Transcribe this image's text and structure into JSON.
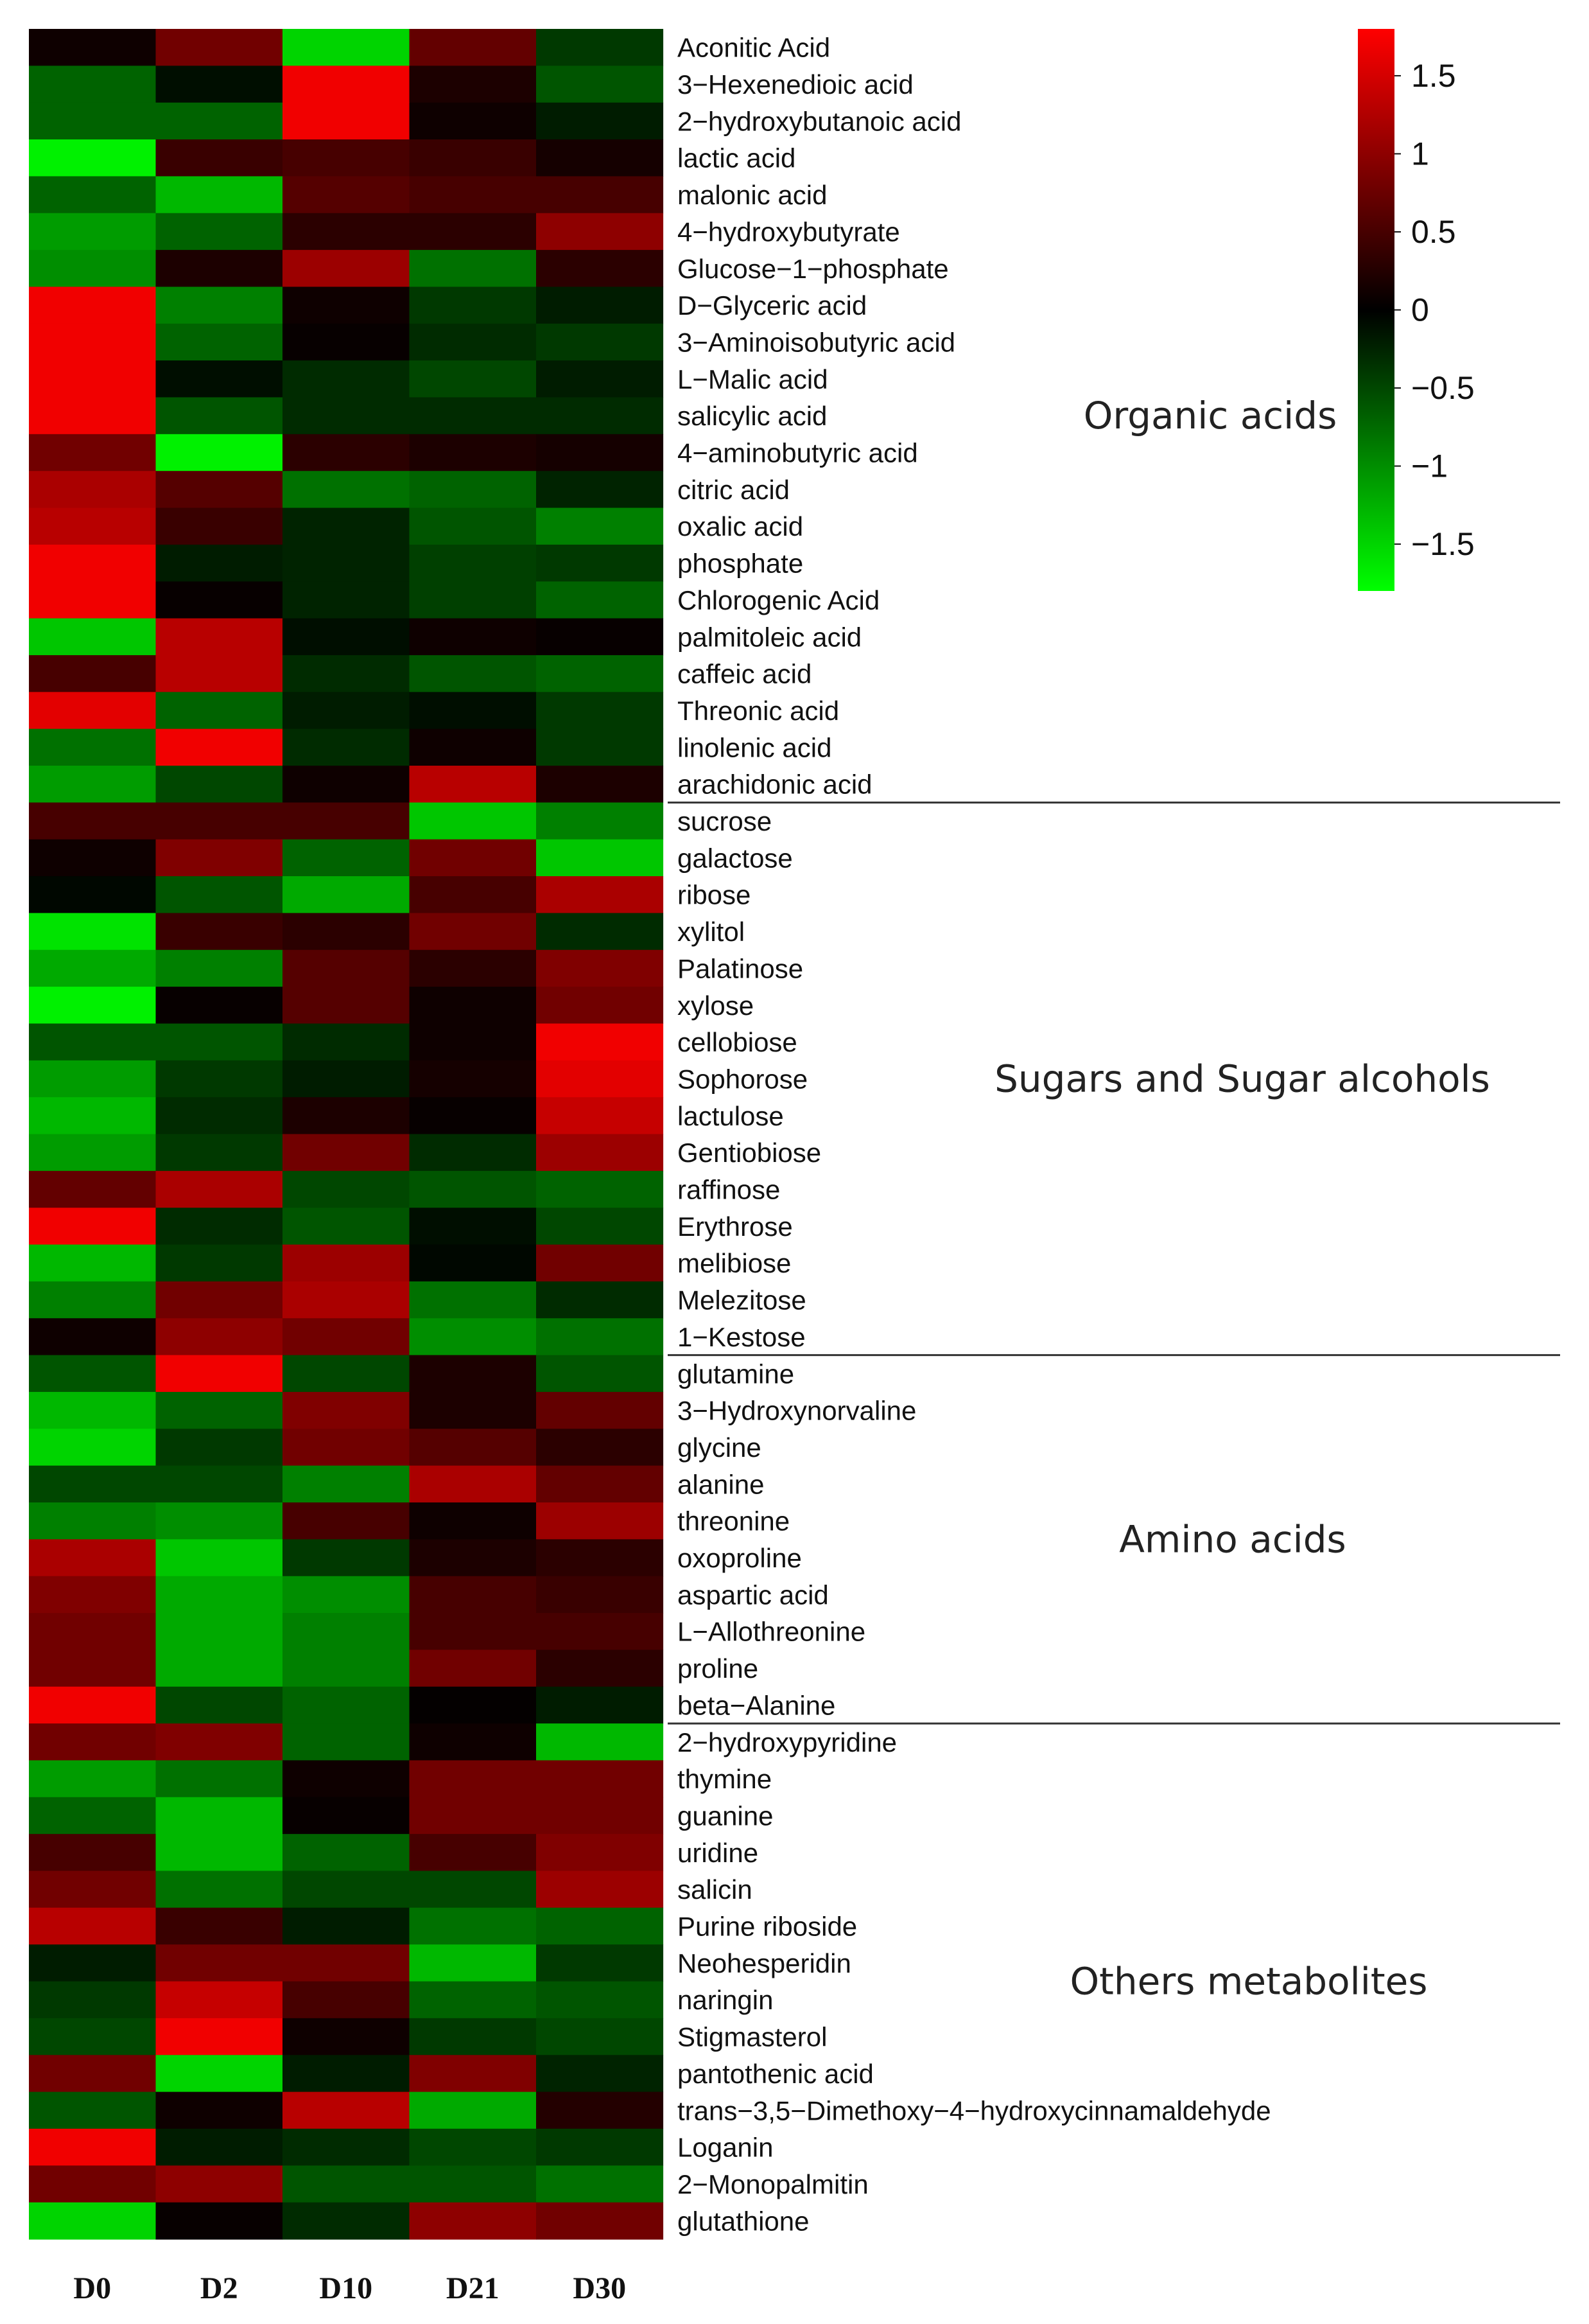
{
  "chart_data": {
    "type": "heatmap",
    "title": "",
    "columns": [
      "D0",
      "D2",
      "D10",
      "D21",
      "D30"
    ],
    "colorscale": {
      "low": "#00ff00",
      "mid": "#000000",
      "high": "#ff0000",
      "range": [
        -1.8,
        1.8
      ],
      "ticks": [
        1.5,
        1,
        0.5,
        0,
        -0.5,
        -1,
        -1.5
      ],
      "tick_labels": [
        "1.5",
        "1",
        "0.5",
        "0",
        "−0.5",
        "−1",
        "−1.5"
      ]
    },
    "groups": [
      {
        "label": "Organic acids",
        "start": 0,
        "end": 20
      },
      {
        "label": "Sugars and Sugar alcohols",
        "start": 21,
        "end": 35
      },
      {
        "label": "Amino acids",
        "start": 36,
        "end": 45
      },
      {
        "label": "Others metabolites",
        "start": 46,
        "end": 59
      }
    ],
    "rows": [
      {
        "label": "Aconitic Acid",
        "values": [
          0.1,
          0.8,
          -1.5,
          0.7,
          -0.4
        ]
      },
      {
        "label": "3−Hexenedioic acid",
        "values": [
          -0.7,
          -0.1,
          1.7,
          0.2,
          -0.6
        ]
      },
      {
        "label": "2−hydroxybutanoic acid",
        "values": [
          -0.7,
          -0.7,
          1.7,
          0.1,
          -0.2
        ]
      },
      {
        "label": "lactic acid",
        "values": [
          -1.7,
          0.4,
          0.5,
          0.4,
          0.15
        ]
      },
      {
        "label": "malonic acid",
        "values": [
          -0.7,
          -1.3,
          0.6,
          0.5,
          0.5
        ]
      },
      {
        "label": "4−hydroxybutyrate",
        "values": [
          -1.1,
          -0.7,
          0.3,
          0.3,
          1.0
        ]
      },
      {
        "label": "Glucose−1−phosphate",
        "values": [
          -1.0,
          0.2,
          1.1,
          -0.8,
          0.3
        ]
      },
      {
        "label": "D−Glyceric acid",
        "values": [
          1.7,
          -0.9,
          0.1,
          -0.4,
          -0.2
        ]
      },
      {
        "label": "3−Aminoisobutyric acid",
        "values": [
          1.7,
          -0.7,
          0.05,
          -0.3,
          -0.4
        ]
      },
      {
        "label": "L−Malic acid",
        "values": [
          1.7,
          -0.1,
          -0.3,
          -0.5,
          -0.2
        ]
      },
      {
        "label": "salicylic acid",
        "values": [
          1.7,
          -0.6,
          -0.3,
          -0.3,
          -0.3
        ]
      },
      {
        "label": "4−aminobutyric acid",
        "values": [
          0.8,
          -1.7,
          0.3,
          0.2,
          0.15
        ]
      },
      {
        "label": "citric acid",
        "values": [
          1.2,
          0.6,
          -0.8,
          -0.7,
          -0.25
        ]
      },
      {
        "label": "oxalic acid",
        "values": [
          1.3,
          0.4,
          -0.25,
          -0.6,
          -0.9
        ]
      },
      {
        "label": "phosphate",
        "values": [
          1.7,
          -0.2,
          -0.25,
          -0.45,
          -0.4
        ]
      },
      {
        "label": "Chlorogenic Acid",
        "values": [
          1.7,
          0.05,
          -0.25,
          -0.45,
          -0.7
        ]
      },
      {
        "label": "palmitoleic acid",
        "values": [
          -1.4,
          1.3,
          -0.1,
          0.1,
          0.05
        ]
      },
      {
        "label": "caffeic acid",
        "values": [
          0.5,
          1.3,
          -0.3,
          -0.6,
          -0.7
        ]
      },
      {
        "label": "Threonic acid",
        "values": [
          1.6,
          -0.7,
          -0.2,
          -0.1,
          -0.4
        ]
      },
      {
        "label": "linolenic acid",
        "values": [
          -0.8,
          1.7,
          -0.3,
          0.1,
          -0.4
        ]
      },
      {
        "label": "arachidonic acid",
        "values": [
          -1.1,
          -0.5,
          0.1,
          1.3,
          0.2
        ]
      },
      {
        "label": "sucrose",
        "values": [
          0.5,
          0.5,
          0.5,
          -1.4,
          -0.9
        ]
      },
      {
        "label": "galactose",
        "values": [
          0.1,
          0.9,
          -0.7,
          0.8,
          -1.4
        ]
      },
      {
        "label": "ribose",
        "values": [
          -0.05,
          -0.6,
          -1.2,
          0.5,
          1.2
        ]
      },
      {
        "label": "xylitol",
        "values": [
          -1.6,
          0.4,
          0.3,
          0.8,
          -0.3
        ]
      },
      {
        "label": "Palatinose",
        "values": [
          -1.2,
          -0.9,
          0.6,
          0.3,
          0.9
        ]
      },
      {
        "label": "xylose",
        "values": [
          -1.7,
          0.05,
          0.6,
          0.1,
          0.8
        ]
      },
      {
        "label": "cellobiose",
        "values": [
          -0.6,
          -0.6,
          -0.3,
          0.1,
          1.7
        ]
      },
      {
        "label": "Sophorose",
        "values": [
          -1.1,
          -0.4,
          -0.2,
          0.15,
          1.6
        ]
      },
      {
        "label": "lactulose",
        "values": [
          -1.3,
          -0.3,
          0.2,
          0.05,
          1.4
        ]
      },
      {
        "label": "Gentiobiose",
        "values": [
          -1.1,
          -0.4,
          0.8,
          -0.3,
          1.1
        ]
      },
      {
        "label": "raffinose",
        "values": [
          0.7,
          1.2,
          -0.5,
          -0.6,
          -0.7
        ]
      },
      {
        "label": "Erythrose",
        "values": [
          1.7,
          -0.3,
          -0.6,
          -0.1,
          -0.5
        ]
      },
      {
        "label": "melibiose",
        "values": [
          -1.3,
          -0.4,
          1.1,
          -0.05,
          0.8
        ]
      },
      {
        "label": "Melezitose",
        "values": [
          -0.9,
          0.8,
          1.2,
          -0.8,
          -0.3
        ]
      },
      {
        "label": "1−Kestose",
        "values": [
          0.1,
          1.0,
          0.8,
          -1.0,
          -0.8
        ]
      },
      {
        "label": "glutamine",
        "values": [
          -0.6,
          1.7,
          -0.5,
          0.2,
          -0.6
        ]
      },
      {
        "label": "3−Hydroxynorvaline",
        "values": [
          -1.3,
          -0.7,
          0.9,
          0.2,
          0.7
        ]
      },
      {
        "label": "glycine",
        "values": [
          -1.5,
          -0.4,
          0.8,
          0.6,
          0.3
        ]
      },
      {
        "label": "alanine",
        "values": [
          -0.5,
          -0.5,
          -0.9,
          1.2,
          0.7
        ]
      },
      {
        "label": "threonine",
        "values": [
          -0.9,
          -1.0,
          0.5,
          0.1,
          1.1
        ]
      },
      {
        "label": "oxoproline",
        "values": [
          1.2,
          -1.4,
          -0.4,
          0.2,
          0.3
        ]
      },
      {
        "label": "aspartic acid",
        "values": [
          0.9,
          -1.2,
          -1.0,
          0.5,
          0.4
        ]
      },
      {
        "label": "L−Allothreonine",
        "values": [
          0.8,
          -1.2,
          -0.9,
          0.5,
          0.5
        ]
      },
      {
        "label": "proline",
        "values": [
          0.8,
          -1.2,
          -0.9,
          0.8,
          0.3
        ]
      },
      {
        "label": "beta−Alanine",
        "values": [
          1.7,
          -0.5,
          -0.7,
          0.03,
          -0.2
        ]
      },
      {
        "label": "2−hydroxypyridine",
        "values": [
          0.8,
          0.9,
          -0.7,
          0.1,
          -1.3
        ]
      },
      {
        "label": "thymine",
        "values": [
          -1.1,
          -0.8,
          0.1,
          0.8,
          0.8
        ]
      },
      {
        "label": "guanine",
        "values": [
          -0.7,
          -1.3,
          0.05,
          0.8,
          0.8
        ]
      },
      {
        "label": "uridine",
        "values": [
          0.5,
          -1.3,
          -0.7,
          0.5,
          0.9
        ]
      },
      {
        "label": "salicin",
        "values": [
          0.8,
          -0.8,
          -0.5,
          -0.5,
          1.1
        ]
      },
      {
        "label": "Purine riboside",
        "values": [
          1.3,
          0.4,
          -0.2,
          -0.8,
          -0.7
        ]
      },
      {
        "label": "Neohesperidin",
        "values": [
          -0.2,
          0.8,
          0.8,
          -1.3,
          -0.4
        ]
      },
      {
        "label": "naringin",
        "values": [
          -0.4,
          1.4,
          0.5,
          -0.7,
          -0.6
        ]
      },
      {
        "label": "Stigmasterol",
        "values": [
          -0.5,
          1.7,
          0.1,
          -0.4,
          -0.5
        ]
      },
      {
        "label": "pantothenic acid",
        "values": [
          0.8,
          -1.5,
          -0.2,
          0.9,
          -0.25
        ]
      },
      {
        "label": "trans−3,5−Dimethoxy−4−hydroxycinnamaldehyde",
        "values": [
          -0.6,
          0.1,
          1.3,
          -1.2,
          0.25
        ]
      },
      {
        "label": "Loganin",
        "values": [
          1.7,
          -0.2,
          -0.3,
          -0.5,
          -0.4
        ]
      },
      {
        "label": "2−Monopalmitin",
        "values": [
          0.8,
          1.0,
          -0.6,
          -0.6,
          -0.8
        ]
      },
      {
        "label": "glutathione",
        "values": [
          -1.5,
          0.05,
          -0.3,
          1.0,
          0.8
        ]
      }
    ]
  }
}
